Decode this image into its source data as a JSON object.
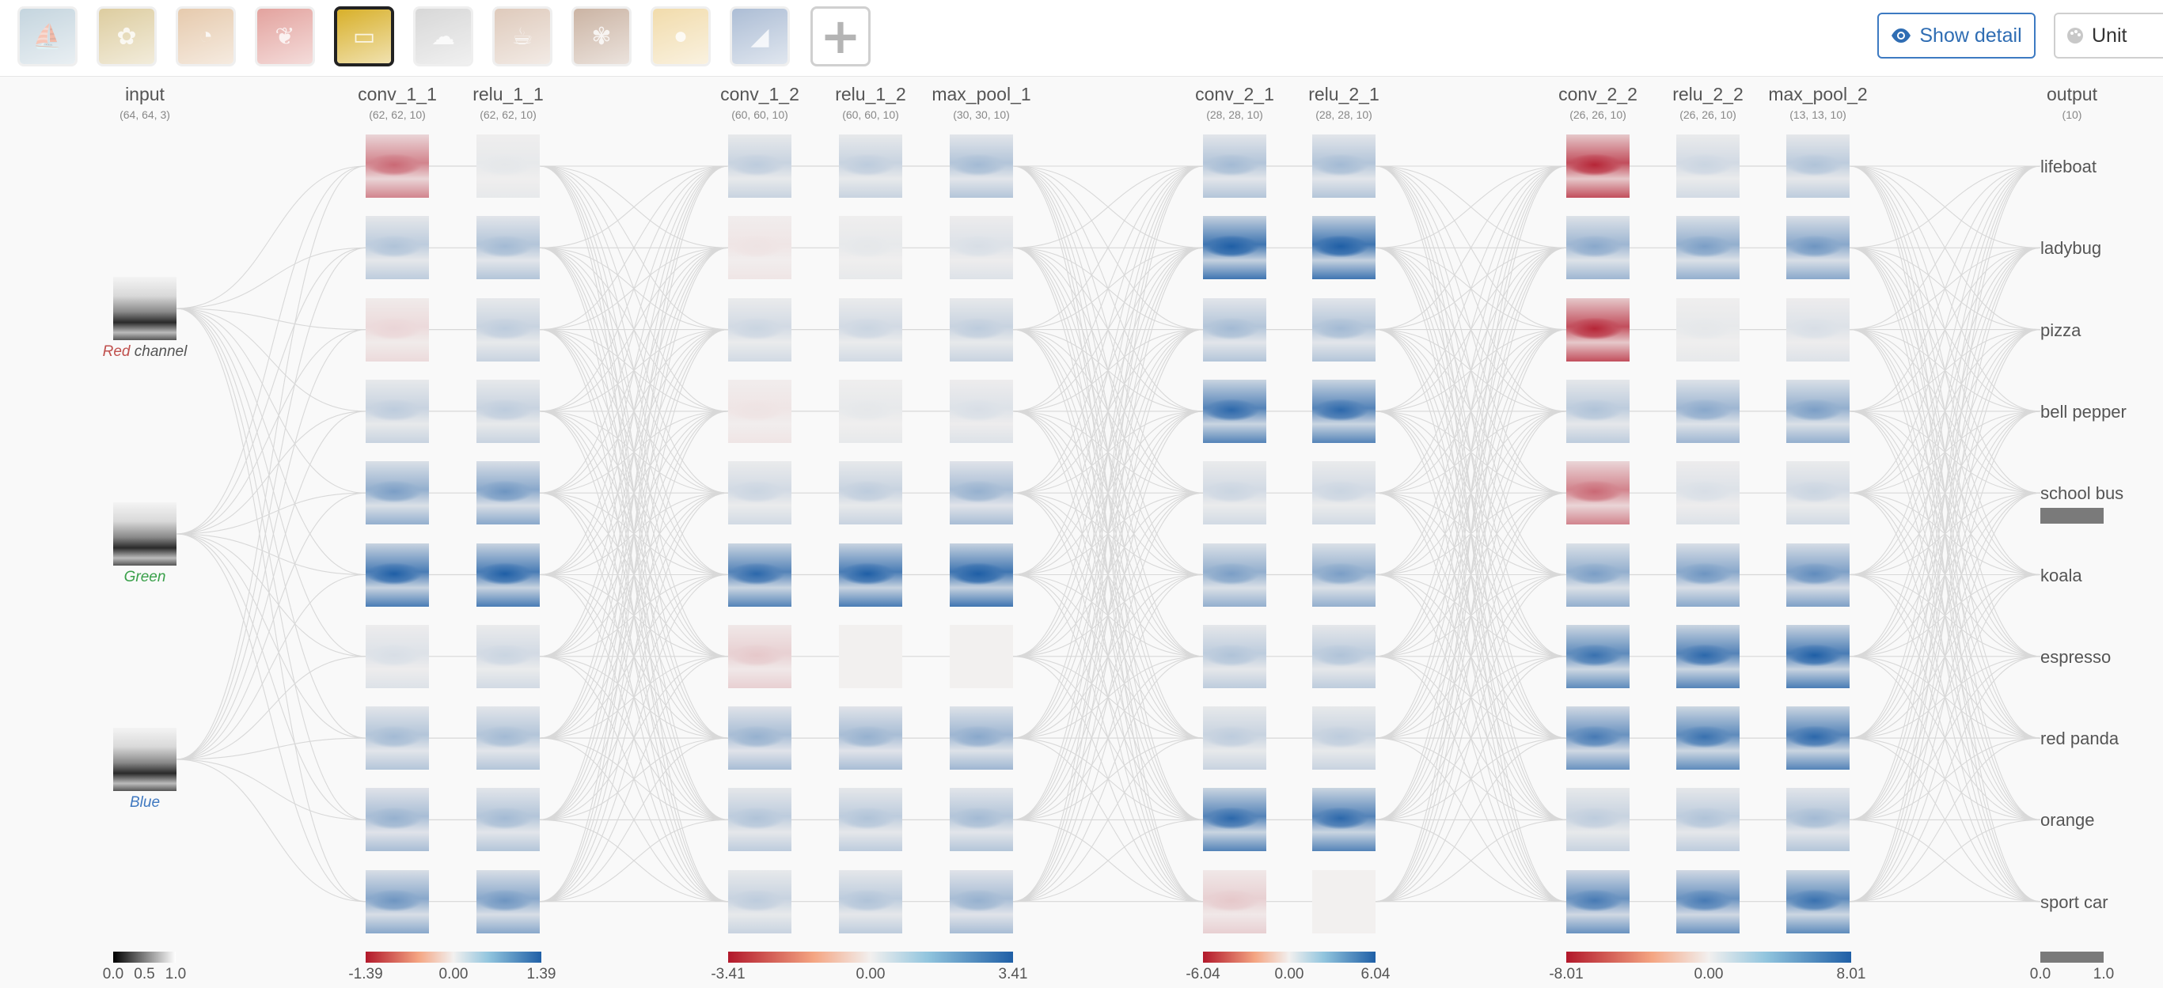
{
  "toolbar": {
    "thumbnails": [
      {
        "name": "lifeboat-thumbnail",
        "icon": "boat-icon",
        "color": "#7fa3b8",
        "selected": false
      },
      {
        "name": "ladybug-thumbnail",
        "icon": "ladybug-icon",
        "color": "#b5912d",
        "selected": false
      },
      {
        "name": "pizza-thumbnail",
        "icon": "pizza-icon",
        "color": "#c98b4b",
        "selected": false
      },
      {
        "name": "bell-pepper-thumbnail",
        "icon": "pepper-icon",
        "color": "#c2342a",
        "selected": false
      },
      {
        "name": "school-bus-thumbnail",
        "icon": "bus-icon",
        "color": "#d8b02a",
        "selected": true
      },
      {
        "name": "koala-thumbnail",
        "icon": "koala-icon",
        "color": "#a9a9a9",
        "selected": false
      },
      {
        "name": "espresso-thumbnail",
        "icon": "cup-icon",
        "color": "#b88b6b",
        "selected": false
      },
      {
        "name": "red-panda-thumbnail",
        "icon": "panda-icon",
        "color": "#8d5a36",
        "selected": false
      },
      {
        "name": "orange-thumbnail",
        "icon": "orange-icon",
        "color": "#e2b248",
        "selected": false
      },
      {
        "name": "sport-car-thumbnail",
        "icon": "car-icon",
        "color": "#4a6fa3",
        "selected": false
      }
    ],
    "add_icon": "plus-icon",
    "add_symbol": "+",
    "show_detail_label": "Show detail",
    "show_detail_icon": "eye-icon",
    "unit_label": "Unit",
    "unit_icon": "palette-icon"
  },
  "colors": {
    "negative": "#b2182b",
    "neutral": "#f2f0ef",
    "positive": "#1f5fa6",
    "wire": "#d8d8d8",
    "accent": "#3d7ac2"
  },
  "layers": [
    {
      "id": "input",
      "title": "input",
      "dims": "(64, 64, 3)"
    },
    {
      "id": "conv_1_1",
      "title": "conv_1_1",
      "dims": "(62, 62, 10)",
      "kind": "conv"
    },
    {
      "id": "relu_1_1",
      "title": "relu_1_1",
      "dims": "(62, 62, 10)",
      "kind": "relu"
    },
    {
      "id": "conv_1_2",
      "title": "conv_1_2",
      "dims": "(60, 60, 10)",
      "kind": "conv"
    },
    {
      "id": "relu_1_2",
      "title": "relu_1_2",
      "dims": "(60, 60, 10)",
      "kind": "relu"
    },
    {
      "id": "max_pool_1",
      "title": "max_pool_1",
      "dims": "(30, 30, 10)",
      "kind": "relu"
    },
    {
      "id": "conv_2_1",
      "title": "conv_2_1",
      "dims": "(28, 28, 10)",
      "kind": "conv"
    },
    {
      "id": "relu_2_1",
      "title": "relu_2_1",
      "dims": "(28, 28, 10)",
      "kind": "relu"
    },
    {
      "id": "conv_2_2",
      "title": "conv_2_2",
      "dims": "(26, 26, 10)",
      "kind": "conv"
    },
    {
      "id": "relu_2_2",
      "title": "relu_2_2",
      "dims": "(26, 26, 10)",
      "kind": "relu"
    },
    {
      "id": "max_pool_2",
      "title": "max_pool_2",
      "dims": "(13, 13, 10)",
      "kind": "relu"
    },
    {
      "id": "output",
      "title": "output",
      "dims": "(10)"
    }
  ],
  "input_channels": [
    {
      "label": "Red",
      "suffix": " channel",
      "color": "#c0504d"
    },
    {
      "label": "Green",
      "suffix": "",
      "color": "#3aa04a"
    },
    {
      "label": "Blue",
      "suffix": "",
      "color": "#3f78c0"
    }
  ],
  "activations": {
    "conv_1_1": [
      -0.5,
      0.25,
      -0.1,
      0.2,
      0.45,
      0.8,
      0.1,
      0.3,
      0.35,
      0.5
    ],
    "relu_1_1": [
      0.05,
      0.3,
      0.2,
      0.2,
      0.5,
      0.8,
      0.15,
      0.3,
      0.3,
      0.5
    ],
    "conv_1_2": [
      0.2,
      -0.05,
      0.15,
      -0.05,
      0.15,
      0.75,
      -0.15,
      0.35,
      0.25,
      0.2
    ],
    "relu_1_2": [
      0.2,
      0.05,
      0.15,
      0.05,
      0.2,
      0.8,
      0.0,
      0.35,
      0.25,
      0.25
    ],
    "max_pool_1": [
      0.3,
      0.1,
      0.2,
      0.1,
      0.35,
      0.85,
      0.0,
      0.4,
      0.3,
      0.35
    ],
    "conv_2_1": [
      0.3,
      0.85,
      0.3,
      0.75,
      0.15,
      0.45,
      0.25,
      0.2,
      0.75,
      -0.15
    ],
    "relu_2_1": [
      0.3,
      0.85,
      0.3,
      0.75,
      0.15,
      0.45,
      0.25,
      0.2,
      0.75,
      0.0
    ],
    "conv_2_2": [
      -0.75,
      0.4,
      -0.75,
      0.25,
      -0.5,
      0.45,
      0.7,
      0.65,
      0.2,
      0.65
    ],
    "relu_2_2": [
      0.15,
      0.45,
      0.05,
      0.4,
      0.1,
      0.5,
      0.75,
      0.7,
      0.25,
      0.65
    ],
    "max_pool_2": [
      0.25,
      0.5,
      0.1,
      0.45,
      0.15,
      0.55,
      0.8,
      0.75,
      0.3,
      0.7
    ]
  },
  "outputs": {
    "classes": [
      "lifeboat",
      "ladybug",
      "pizza",
      "bell pepper",
      "school bus",
      "koala",
      "espresso",
      "red panda",
      "orange",
      "sport car"
    ],
    "probabilities": [
      0.0,
      0.0,
      0.0,
      0.0,
      1.0,
      0.0,
      0.0,
      0.0,
      0.0,
      0.0
    ]
  },
  "colorbars": [
    {
      "name": "input-colorbar",
      "scheme": "gray",
      "ticks": [
        "0.0",
        "0.5",
        "1.0"
      ]
    },
    {
      "name": "block1a-colorbar",
      "scheme": "diverging",
      "ticks": [
        "-1.39",
        "0.00",
        "1.39"
      ]
    },
    {
      "name": "block1b-colorbar",
      "scheme": "diverging",
      "ticks": [
        "-3.41",
        "0.00",
        "3.41"
      ]
    },
    {
      "name": "block2a-colorbar",
      "scheme": "diverging",
      "ticks": [
        "-6.04",
        "0.00",
        "6.04"
      ]
    },
    {
      "name": "block2b-colorbar",
      "scheme": "diverging",
      "ticks": [
        "-8.01",
        "0.00",
        "8.01"
      ]
    },
    {
      "name": "output-colorbar",
      "scheme": "gray",
      "ticks": [
        "0.0",
        "1.0"
      ]
    }
  ]
}
